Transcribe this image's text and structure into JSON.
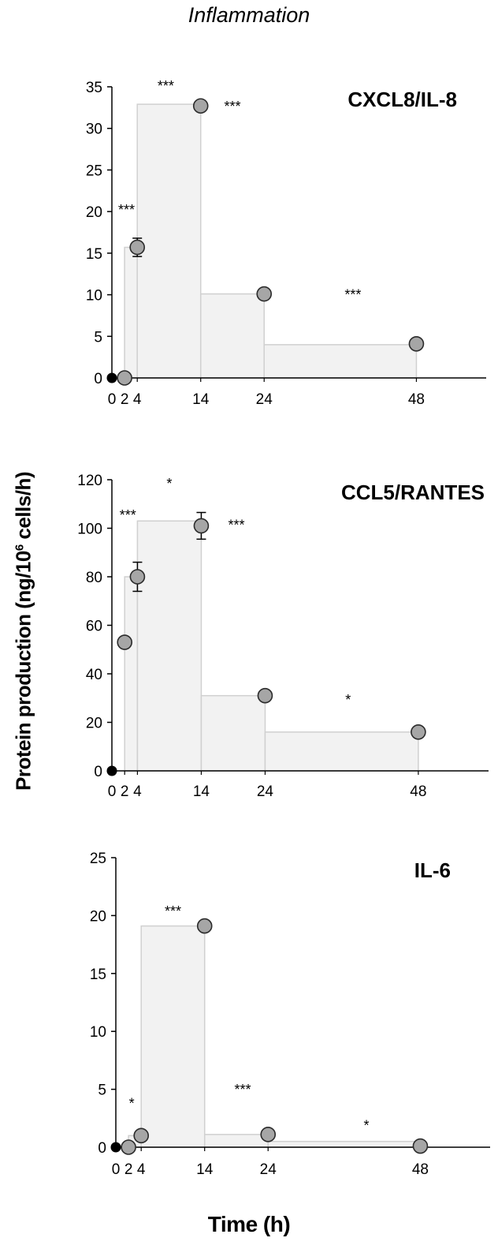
{
  "figure": {
    "title": "Inflammation",
    "ylabel_pre": "Protein production (ng/10",
    "ylabel_sup": "6",
    "ylabel_post": " cells/h)",
    "xlabel": "Time (h)"
  },
  "colors": {
    "marker_fill": "#a6a6a6",
    "marker_edge": "#2b2b2b",
    "origin_marker": "#000000",
    "bar_fill": "#f2f2f2",
    "bar_edge": "#d0d0d0",
    "axis": "#000000"
  },
  "chart_data": [
    {
      "type": "scatter",
      "title": "CXCL8/IL-8",
      "xlabel": "Time (h)",
      "ylabel": "Protein production (ng/10^6 cells/h)",
      "x_tick_labels": [
        "0",
        "2",
        "4",
        "14",
        "24",
        "48"
      ],
      "x_ticks": [
        0,
        2,
        4,
        14,
        24,
        48
      ],
      "xlim": [
        0,
        59
      ],
      "ylim": [
        0,
        35
      ],
      "y_ticks": [
        0,
        5,
        10,
        15,
        20,
        25,
        30,
        35
      ],
      "points": [
        {
          "x": 0,
          "y": 0,
          "origin": true
        },
        {
          "x": 2,
          "y": 0
        },
        {
          "x": 4,
          "y": 15.7,
          "err": 1.1
        },
        {
          "x": 14,
          "y": 32.7
        },
        {
          "x": 24,
          "y": 10.1
        },
        {
          "x": 48,
          "y": 4.1
        }
      ],
      "intervals": [
        {
          "from": 2,
          "to": 4,
          "value": 15.7
        },
        {
          "from": 4,
          "to": 14,
          "value": 32.9
        },
        {
          "from": 14,
          "to": 24,
          "value": 10.1
        },
        {
          "from": 24,
          "to": 48,
          "value": 4.0
        }
      ],
      "significance": [
        {
          "label": "***",
          "x": 2.3,
          "y": 20.4
        },
        {
          "label": "***",
          "x": 8.5,
          "y": 35.3
        },
        {
          "label": "***",
          "x": 19,
          "y": 32.8
        },
        {
          "label": "***",
          "x": 38,
          "y": 10.2
        }
      ]
    },
    {
      "type": "scatter",
      "title": "CCL5/RANTES",
      "xlabel": "Time (h)",
      "ylabel": "Protein production (ng/10^6 cells/h)",
      "x_tick_labels": [
        "0",
        "2",
        "4",
        "14",
        "24",
        "48"
      ],
      "x_ticks": [
        0,
        2,
        4,
        14,
        24,
        48
      ],
      "xlim": [
        0,
        59
      ],
      "ylim": [
        0,
        120
      ],
      "y_ticks": [
        0,
        20,
        40,
        60,
        80,
        100,
        120
      ],
      "points": [
        {
          "x": 0,
          "y": 0,
          "origin": true
        },
        {
          "x": 2,
          "y": 53
        },
        {
          "x": 4,
          "y": 80,
          "err": 6
        },
        {
          "x": 14,
          "y": 101,
          "err": 5.5
        },
        {
          "x": 24,
          "y": 31
        },
        {
          "x": 48,
          "y": 16
        }
      ],
      "intervals": [
        {
          "from": 2,
          "to": 4,
          "value": 80
        },
        {
          "from": 4,
          "to": 14,
          "value": 103
        },
        {
          "from": 14,
          "to": 24,
          "value": 31
        },
        {
          "from": 24,
          "to": 48,
          "value": 16
        }
      ],
      "significance": [
        {
          "label": "***",
          "x": 2.5,
          "y": 106
        },
        {
          "label": "*",
          "x": 9,
          "y": 119
        },
        {
          "label": "***",
          "x": 19.5,
          "y": 102
        },
        {
          "label": "*",
          "x": 37,
          "y": 30
        }
      ]
    },
    {
      "type": "scatter",
      "title": "IL-6",
      "xlabel": "Time (h)",
      "ylabel": "Protein production (ng/10^6 cells/h)",
      "x_tick_labels": [
        "0",
        "2",
        "4",
        "14",
        "24",
        "48"
      ],
      "x_ticks": [
        0,
        2,
        4,
        14,
        24,
        48
      ],
      "xlim": [
        0,
        59
      ],
      "ylim": [
        0,
        25
      ],
      "y_ticks": [
        0,
        5,
        10,
        15,
        20,
        25
      ],
      "points": [
        {
          "x": 0,
          "y": 0,
          "origin": true
        },
        {
          "x": 2,
          "y": 0
        },
        {
          "x": 4,
          "y": 1.0
        },
        {
          "x": 14,
          "y": 19.1
        },
        {
          "x": 24,
          "y": 1.1
        },
        {
          "x": 48,
          "y": 0.1
        }
      ],
      "intervals": [
        {
          "from": 2,
          "to": 4,
          "value": 1.0
        },
        {
          "from": 4,
          "to": 14,
          "value": 19.1
        },
        {
          "from": 14,
          "to": 24,
          "value": 1.1
        },
        {
          "from": 24,
          "to": 48,
          "value": 0.5
        }
      ],
      "significance": [
        {
          "label": "*",
          "x": 2.5,
          "y": 3.9
        },
        {
          "label": "***",
          "x": 9,
          "y": 20.5
        },
        {
          "label": "***",
          "x": 20,
          "y": 5.1
        },
        {
          "label": "*",
          "x": 39.5,
          "y": 2.0
        }
      ]
    }
  ]
}
